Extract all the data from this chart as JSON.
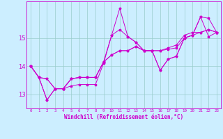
{
  "title": "",
  "xlabel": "Windchill (Refroidissement éolien,°C)",
  "bg_color": "#cceeff",
  "line_color": "#cc00cc",
  "grid_color": "#99cccc",
  "x_ticks": [
    0,
    1,
    2,
    3,
    4,
    5,
    6,
    7,
    8,
    9,
    10,
    11,
    12,
    13,
    14,
    15,
    16,
    17,
    18,
    19,
    20,
    21,
    22,
    23
  ],
  "y_ticks": [
    13,
    14,
    15
  ],
  "ylim": [
    12.5,
    16.3
  ],
  "xlim": [
    -0.5,
    23.5
  ],
  "series": [
    [
      14.0,
      13.6,
      12.8,
      13.2,
      13.2,
      13.3,
      13.35,
      13.35,
      13.35,
      14.1,
      15.1,
      15.3,
      15.05,
      14.85,
      14.55,
      14.55,
      13.85,
      14.25,
      14.35,
      15.0,
      15.1,
      15.75,
      15.05,
      15.2
    ],
    [
      14.0,
      13.6,
      12.8,
      13.2,
      13.2,
      13.55,
      13.6,
      13.6,
      13.6,
      14.15,
      15.1,
      16.05,
      15.05,
      14.85,
      14.55,
      14.55,
      13.85,
      14.25,
      14.35,
      15.0,
      15.1,
      15.75,
      15.7,
      15.2
    ],
    [
      14.0,
      13.6,
      13.55,
      13.2,
      13.2,
      13.55,
      13.6,
      13.6,
      13.6,
      14.15,
      14.4,
      14.55,
      14.55,
      14.7,
      14.55,
      14.55,
      14.55,
      14.6,
      14.65,
      15.0,
      15.1,
      15.2,
      15.3,
      15.2
    ],
    [
      14.0,
      13.6,
      13.55,
      13.2,
      13.2,
      13.55,
      13.6,
      13.6,
      13.6,
      14.15,
      14.4,
      14.55,
      14.55,
      14.7,
      14.55,
      14.55,
      14.55,
      14.65,
      14.75,
      15.1,
      15.2,
      15.2,
      15.3,
      15.2
    ]
  ],
  "xlabel_fontsize": 5.5,
  "ytick_fontsize": 6.0,
  "xtick_fontsize": 4.2,
  "linewidth": 0.7,
  "markersize": 2.5
}
